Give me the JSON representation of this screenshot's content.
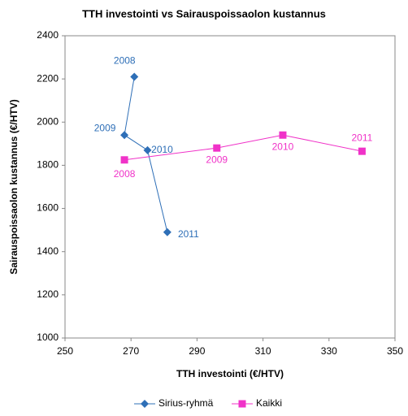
{
  "chart_data": {
    "type": "scatter",
    "title": "TTH investointi vs Sairauspoissaolon kustannus",
    "x_label": "TTH investointi (€/HTV)",
    "y_label": "Sairauspoissaolon kustannus (€/HTV)",
    "xlim": [
      250,
      350
    ],
    "xticks": [
      250,
      270,
      290,
      310,
      330,
      350
    ],
    "ylim": [
      1000,
      2400
    ],
    "yticks": [
      1000,
      1200,
      1400,
      1600,
      1800,
      2000,
      2200,
      2400
    ],
    "lines": true,
    "legend": "bottom",
    "series": [
      {
        "name": "Sirius-ryhmä",
        "color": "#2e6fb7",
        "marker": "diamond",
        "x": [
          271,
          268,
          275,
          281
        ],
        "values": [
          2210,
          1940,
          1870,
          1490
        ],
        "point_labels": [
          "2008",
          "2009",
          "2010",
          "2011"
        ]
      },
      {
        "name": "Kaikki",
        "color": "#f032c8",
        "marker": "square",
        "x": [
          268,
          296,
          316,
          340
        ],
        "values": [
          1825,
          1880,
          1940,
          1865
        ],
        "point_labels": [
          "2008",
          "2009",
          "2010",
          "2011"
        ]
      }
    ]
  }
}
